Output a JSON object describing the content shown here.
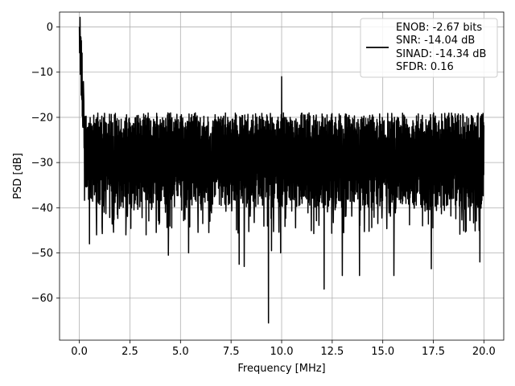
{
  "chart_data": {
    "type": "line",
    "title": "",
    "xlabel": "Frequency [MHz]",
    "ylabel": "PSD [dB]",
    "xlim": [
      -0.98,
      20.98
    ],
    "ylim": [
      -69.3,
      3.3
    ],
    "x_ticks": [
      0.0,
      2.5,
      5.0,
      7.5,
      10.0,
      12.5,
      15.0,
      17.5,
      20.0
    ],
    "x_tick_labels": [
      "0.0",
      "2.5",
      "5.0",
      "7.5",
      "10.0",
      "12.5",
      "15.0",
      "17.5",
      "20.0"
    ],
    "y_ticks": [
      0,
      -10,
      -20,
      -30,
      -40,
      -50,
      -60
    ],
    "y_tick_labels": [
      "0",
      "−10",
      "−20",
      "−30",
      "−40",
      "−50",
      "−60"
    ],
    "grid": true,
    "legend_position": "upper right",
    "series": [
      {
        "color": "#000000",
        "x_range": [
          0.0,
          20.0
        ],
        "peaks": [
          {
            "x": 0.0,
            "y": 0.0
          },
          {
            "x": 0.05,
            "y": -10.5
          },
          {
            "x": 10.0,
            "y": -11.0
          }
        ],
        "deep_nulls": [
          {
            "x": 0.3,
            "y": -35.3
          },
          {
            "x": 0.5,
            "y": -48.0
          },
          {
            "x": 0.85,
            "y": -46.0
          },
          {
            "x": 2.3,
            "y": -46.0
          },
          {
            "x": 3.3,
            "y": -46.0
          },
          {
            "x": 4.4,
            "y": -50.5
          },
          {
            "x": 5.4,
            "y": -50.0
          },
          {
            "x": 6.4,
            "y": -45.5
          },
          {
            "x": 7.9,
            "y": -52.5
          },
          {
            "x": 8.15,
            "y": -53.0
          },
          {
            "x": 9.35,
            "y": -65.5
          },
          {
            "x": 9.5,
            "y": -49.5
          },
          {
            "x": 9.95,
            "y": -50.0
          },
          {
            "x": 12.1,
            "y": -58.0
          },
          {
            "x": 13.0,
            "y": -55.0
          },
          {
            "x": 13.85,
            "y": -55.0
          },
          {
            "x": 15.55,
            "y": -55.0
          },
          {
            "x": 17.4,
            "y": -53.5
          },
          {
            "x": 19.8,
            "y": -52.0
          }
        ],
        "noise_band": {
          "upper": -22.0,
          "lower": -36.0,
          "mean": -28.0
        }
      }
    ],
    "legend": {
      "lines": [
        "ENOB: -2.67 bits",
        "SNR: -14.04 dB",
        "SINAD: -14.34 dB",
        "SFDR: 0.16"
      ]
    }
  }
}
